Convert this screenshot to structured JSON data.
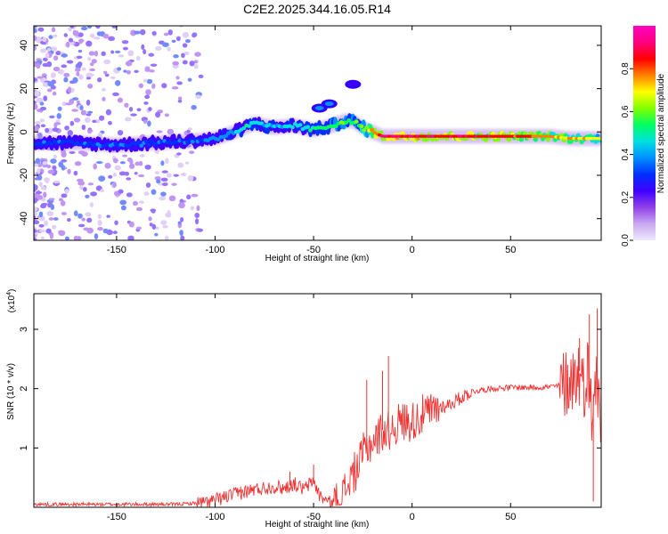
{
  "title": "C2E2.2025.344.16.05.R14",
  "chart_data": [
    {
      "type": "heatmap",
      "title": "C2E2.2025.344.16.05.R14",
      "xlabel": "Height of straight line (km)",
      "ylabel": "Frequency (Hz)",
      "xlim": [
        -192,
        96
      ],
      "ylim": [
        -50,
        49
      ],
      "xticks": [
        -150,
        -100,
        -50,
        0,
        50
      ],
      "yticks": [
        -40,
        -20,
        0,
        20,
        40
      ],
      "colorbar": {
        "label": "Normalized spectral amplitude",
        "range": [
          0,
          1
        ],
        "ticks": [
          0.0,
          0.2,
          0.4,
          0.6,
          0.8
        ],
        "tick_labels": [
          "0.0",
          "0.2",
          "0.4",
          "0.6",
          "0.8"
        ],
        "colormap": [
          "#f0e8ff",
          "#c8a8f0",
          "#9040e8",
          "#4000ff",
          "#0030ff",
          "#0090ff",
          "#00e0e0",
          "#00ff60",
          "#80ff00",
          "#ffff00",
          "#ff8000",
          "#ff0000",
          "#ff0080",
          "#ff00c0"
        ]
      },
      "ridge": {
        "x": [
          -190,
          -170,
          -150,
          -130,
          -110,
          -100,
          -90,
          -80,
          -70,
          -60,
          -50,
          -40,
          -35,
          -30,
          -25,
          -20,
          -15,
          0,
          20,
          50,
          70,
          80,
          95
        ],
        "y": [
          -5,
          -5,
          -6,
          -5,
          -4,
          -3,
          0,
          4,
          2,
          3,
          1,
          3,
          5,
          5,
          2,
          0,
          -2,
          -2,
          -2,
          -2,
          -2,
          -3,
          -3
        ],
        "amplitude": [
          0.3,
          0.3,
          0.3,
          0.28,
          0.3,
          0.35,
          0.4,
          0.45,
          0.38,
          0.42,
          0.45,
          0.5,
          0.55,
          0.5,
          0.55,
          0.75,
          0.85,
          0.85,
          0.82,
          0.8,
          0.72,
          0.68,
          0.65
        ]
      },
      "secondary_blobs": [
        {
          "x": -47,
          "y": 11,
          "amplitude": 0.4
        },
        {
          "x": -42,
          "y": 13,
          "amplitude": 0.35
        },
        {
          "x": -30,
          "y": 22,
          "amplitude": 0.2
        }
      ]
    },
    {
      "type": "line",
      "xlabel": "Height of straight line (km)",
      "ylabel": "SNR (10 * v/v)",
      "multiplier_label": "(x10",
      "multiplier_exp": "4",
      "xlim": [
        -192,
        96
      ],
      "ylim": [
        0,
        3.6
      ],
      "xticks": [
        -150,
        -100,
        -50,
        0,
        50
      ],
      "yticks": [
        1,
        2,
        3
      ],
      "color": "#ee3333",
      "series": [
        {
          "name": "SNR",
          "x": [
            -192,
            -150,
            -120,
            -105,
            -100,
            -90,
            -80,
            -70,
            -65,
            -60,
            -55,
            -50,
            -47,
            -45,
            -42,
            -40,
            -35,
            -32,
            -30,
            -27,
            -25,
            -22,
            -20,
            -17,
            -15,
            -13,
            -10,
            -5,
            0,
            5,
            10,
            15,
            20,
            25,
            30,
            40,
            50,
            60,
            70,
            75,
            78,
            80,
            83,
            85,
            87,
            89,
            91,
            93,
            95,
            96
          ],
          "y": [
            0.05,
            0.05,
            0.05,
            0.08,
            0.12,
            0.22,
            0.3,
            0.35,
            0.32,
            0.4,
            0.3,
            0.45,
            0.2,
            0.15,
            0.08,
            0.05,
            0.2,
            0.45,
            0.55,
            0.7,
            0.9,
            1.05,
            1.1,
            1.2,
            1.3,
            1.25,
            1.35,
            1.45,
            1.45,
            1.55,
            1.6,
            1.7,
            1.75,
            1.85,
            1.95,
            2.0,
            2.02,
            2.02,
            2.03,
            2.05,
            2.1,
            2.15,
            2.2,
            2.3,
            2.0,
            2.4,
            1.6,
            2.2,
            1.8,
            1.0
          ],
          "spikes": [
            {
              "x": -87,
              "y": 0.35
            },
            {
              "x": -62,
              "y": 0.6
            },
            {
              "x": -50,
              "y": 0.72
            },
            {
              "x": -23,
              "y": 2.15
            },
            {
              "x": -12,
              "y": 2.55
            },
            {
              "x": -15,
              "y": 2.3
            },
            {
              "x": 79,
              "y": 2.4
            },
            {
              "x": 85,
              "y": 2.85
            },
            {
              "x": 90,
              "y": 3.25
            },
            {
              "x": 92,
              "y": 0.1
            },
            {
              "x": 94,
              "y": 3.35
            }
          ]
        }
      ]
    }
  ]
}
